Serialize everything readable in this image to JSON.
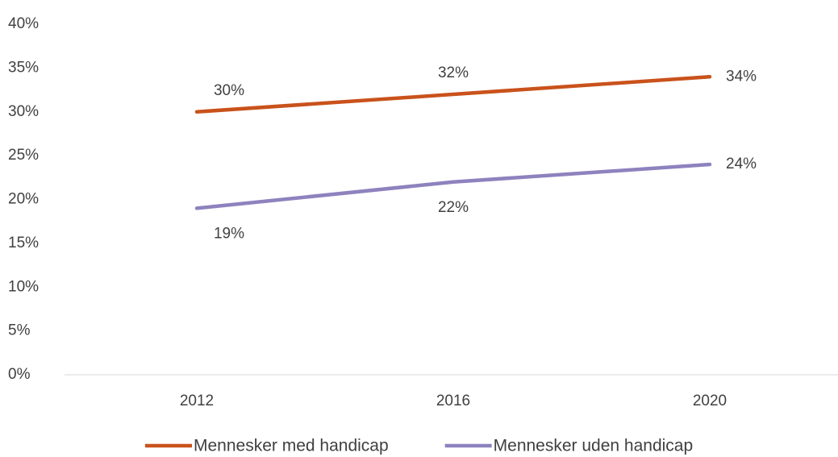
{
  "chart_data": {
    "type": "line",
    "categories": [
      "2012",
      "2016",
      "2020"
    ],
    "series": [
      {
        "name": "Mennesker med handicap",
        "color": "#c9521b",
        "values": [
          30,
          32,
          34
        ],
        "value_labels": [
          "30%",
          "32%",
          "34%"
        ]
      },
      {
        "name": "Mennesker uden handicap",
        "color": "#8e82be",
        "values": [
          19,
          22,
          24
        ],
        "value_labels": [
          "19%",
          "22%",
          "24%"
        ]
      }
    ],
    "ylim": [
      0,
      40
    ],
    "yticks": [
      {
        "value": 0,
        "label": "0%"
      },
      {
        "value": 5,
        "label": "5%"
      },
      {
        "value": 10,
        "label": "10%"
      },
      {
        "value": 15,
        "label": "15%"
      },
      {
        "value": 20,
        "label": "20%"
      },
      {
        "value": 25,
        "label": "25%"
      },
      {
        "value": 30,
        "label": "30%"
      },
      {
        "value": 35,
        "label": "35%"
      },
      {
        "value": 40,
        "label": "40%"
      }
    ],
    "legend": "bottom"
  }
}
